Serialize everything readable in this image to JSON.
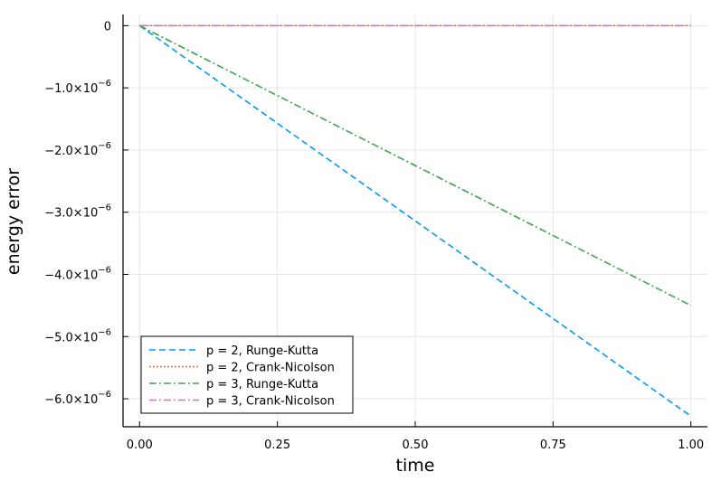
{
  "chart_data": {
    "type": "line",
    "xlabel": "time",
    "ylabel": "energy error",
    "xlim": [
      -0.03,
      1.03
    ],
    "ylim": [
      -6.45e-06,
      1.8e-07
    ],
    "xticks": [
      0.0,
      0.25,
      0.5,
      0.75,
      1.0
    ],
    "xtick_labels": [
      "0.00",
      "0.25",
      "0.50",
      "0.75",
      "1.00"
    ],
    "yticks": [
      0,
      -1e-06,
      -2e-06,
      -3e-06,
      -4e-06,
      -5e-06,
      -6e-06
    ],
    "ytick_labels": [
      {
        "mantissa": "0",
        "exponent": ""
      },
      {
        "mantissa": "−1.0×10",
        "exponent": "−6"
      },
      {
        "mantissa": "−2.0×10",
        "exponent": "−6"
      },
      {
        "mantissa": "−3.0×10",
        "exponent": "−6"
      },
      {
        "mantissa": "−4.0×10",
        "exponent": "−6"
      },
      {
        "mantissa": "−5.0×10",
        "exponent": "−6"
      },
      {
        "mantissa": "−6.0×10",
        "exponent": "−6"
      }
    ],
    "grid": true,
    "legend_position": "bottom-left",
    "series": [
      {
        "name": "p = 2, Runge-Kutta",
        "color": "#009af9",
        "dash": "dash",
        "x": [
          0.0,
          1.0
        ],
        "y": [
          0.0,
          -6.28e-06
        ]
      },
      {
        "name": "p = 2, Crank-Nicolson",
        "color": "#e26f46",
        "dash": "dot",
        "x": [
          0.0,
          1.0
        ],
        "y": [
          0.0,
          0.0
        ]
      },
      {
        "name": "p = 3, Runge-Kutta",
        "color": "#3da44d",
        "dash": "dashdot",
        "x": [
          0.0,
          1.0
        ],
        "y": [
          0.0,
          -4.5e-06
        ]
      },
      {
        "name": "p = 3, Crank-Nicolson",
        "color": "#c271d2",
        "dash": "dashdot",
        "x": [
          0.0,
          1.0
        ],
        "y": [
          0.0,
          0.0
        ]
      }
    ]
  }
}
